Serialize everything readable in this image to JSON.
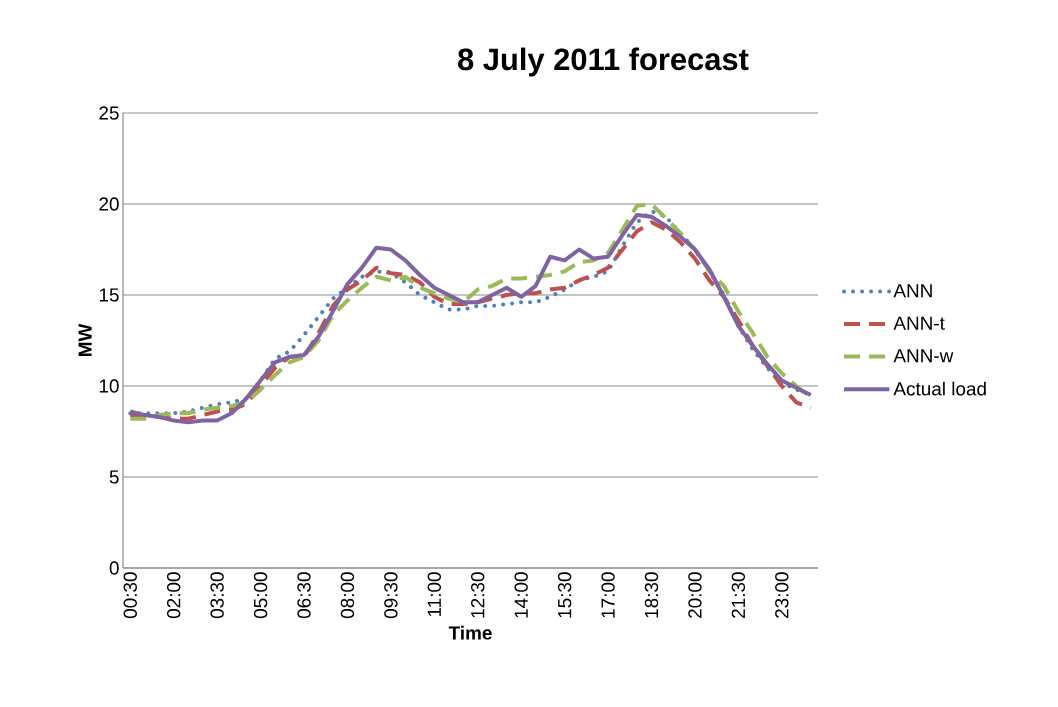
{
  "chart_data": {
    "type": "line",
    "title": "8 July 2011 forecast",
    "xlabel": "Time",
    "ylabel": "MW",
    "categories": [
      "00:30",
      null,
      null,
      "02:00",
      null,
      null,
      "03:30",
      null,
      null,
      "05:00",
      null,
      null,
      "06:30",
      null,
      null,
      "08:00",
      null,
      null,
      "09:30",
      null,
      null,
      "11:00",
      null,
      null,
      "12:30",
      null,
      null,
      "14:00",
      null,
      null,
      "15:30",
      null,
      null,
      "17:00",
      null,
      null,
      "18:30",
      null,
      null,
      "20:00",
      null,
      null,
      "21:30",
      null,
      null,
      "23:00",
      null,
      null
    ],
    "ylim": [
      0,
      25
    ],
    "yticks": [
      0,
      5,
      10,
      15,
      20,
      25
    ],
    "grid": "y",
    "legend": "right",
    "marker": "none",
    "series": [
      {
        "name": "ANN",
        "color": "#4f81bd",
        "line_style": "dotted",
        "values": [
          8.5,
          8.5,
          8.5,
          8.5,
          8.6,
          8.8,
          9.0,
          9.1,
          9.3,
          10.3,
          11.5,
          11.9,
          12.8,
          13.8,
          14.8,
          15.4,
          16.0,
          16.3,
          16.2,
          15.7,
          15.0,
          14.6,
          14.2,
          14.2,
          14.4,
          14.4,
          14.5,
          14.6,
          14.6,
          14.9,
          15.3,
          15.8,
          16.0,
          16.3,
          17.7,
          19.0,
          19.6,
          19.3,
          18.4,
          17.5,
          16.3,
          15.0,
          13.3,
          12.0,
          11.0,
          10.2,
          9.8,
          9.5
        ]
      },
      {
        "name": "ANN-t",
        "color": "#c0504d",
        "line_style": "dashed",
        "values": [
          8.4,
          8.4,
          8.3,
          8.2,
          8.2,
          8.4,
          8.6,
          8.7,
          9.0,
          10.0,
          11.0,
          11.6,
          11.6,
          12.9,
          14.4,
          15.3,
          15.8,
          16.5,
          16.2,
          16.1,
          15.7,
          14.9,
          14.5,
          14.5,
          14.6,
          14.8,
          15.0,
          15.1,
          15.1,
          15.3,
          15.4,
          15.8,
          16.1,
          16.5,
          17.5,
          18.5,
          19.0,
          18.6,
          17.9,
          17.0,
          15.8,
          14.9,
          13.6,
          12.2,
          11.1,
          10.0,
          9.1,
          8.8
        ]
      },
      {
        "name": "ANN-w",
        "color": "#9bbb59",
        "line_style": "dashed",
        "values": [
          8.2,
          8.2,
          8.4,
          8.5,
          8.5,
          8.7,
          8.8,
          8.9,
          9.1,
          9.8,
          10.6,
          11.3,
          11.6,
          12.5,
          13.9,
          14.7,
          15.4,
          16.0,
          15.8,
          16.0,
          15.4,
          15.1,
          14.8,
          14.6,
          15.3,
          15.5,
          15.9,
          15.9,
          16.0,
          16.1,
          16.3,
          16.8,
          16.9,
          17.3,
          18.6,
          19.9,
          20.0,
          19.2,
          18.4,
          17.5,
          16.3,
          15.5,
          14.1,
          12.9,
          11.6,
          10.7,
          10.0,
          9.3
        ]
      },
      {
        "name": "Actual load",
        "color": "#8064a2",
        "line_style": "solid",
        "values": [
          8.6,
          8.4,
          8.3,
          8.1,
          8.0,
          8.1,
          8.1,
          8.5,
          9.3,
          10.3,
          11.3,
          11.6,
          11.7,
          12.7,
          14.1,
          15.6,
          16.5,
          17.6,
          17.5,
          16.9,
          16.1,
          15.4,
          15.0,
          14.6,
          14.6,
          15.0,
          15.4,
          14.9,
          15.5,
          17.1,
          16.9,
          17.5,
          17.0,
          17.1,
          18.3,
          19.4,
          19.3,
          18.8,
          18.2,
          17.5,
          16.4,
          14.9,
          13.3,
          12.2,
          11.2,
          10.3,
          9.9,
          9.5
        ]
      }
    ]
  }
}
